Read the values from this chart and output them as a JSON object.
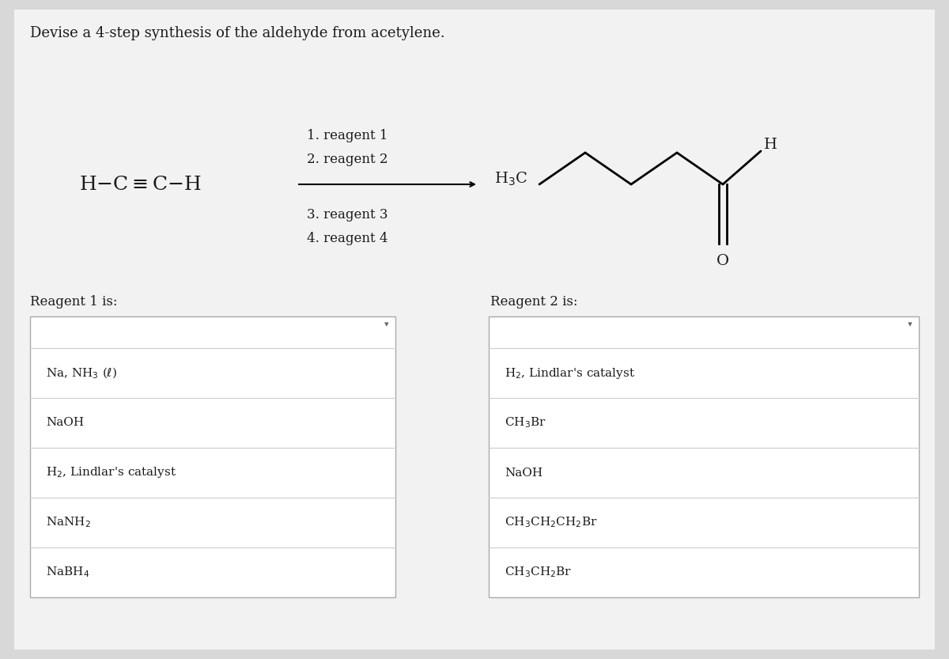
{
  "bg_color": "#d8d8d8",
  "panel_color": "#f2f2f2",
  "title": "Devise a 4-step synthesis of the aldehyde from acetylene.",
  "reagent1_label": "Reagent 1 is:",
  "reagent2_label": "Reagent 2 is:",
  "dropdown1_items": [
    "Na, NH$_3$ ($\\ell$)",
    "NaOH",
    "H$_2$, Lindlar's catalyst",
    "NaNH$_2$",
    "NaBH$_4$"
  ],
  "dropdown2_items": [
    "H$_2$, Lindlar's catalyst",
    "CH$_3$Br",
    "NaOH",
    "CH$_3$CH$_2$CH$_2$Br",
    "CH$_3$CH$_2$Br"
  ],
  "text_color": "#1a1a1a",
  "box_color": "#ffffff",
  "box_border": "#aaaaaa",
  "item_sep_color": "#cccccc",
  "font_size_title": 13,
  "font_size_label": 12,
  "font_size_item": 11,
  "font_size_mol": 14,
  "font_size_reagent_text": 12
}
